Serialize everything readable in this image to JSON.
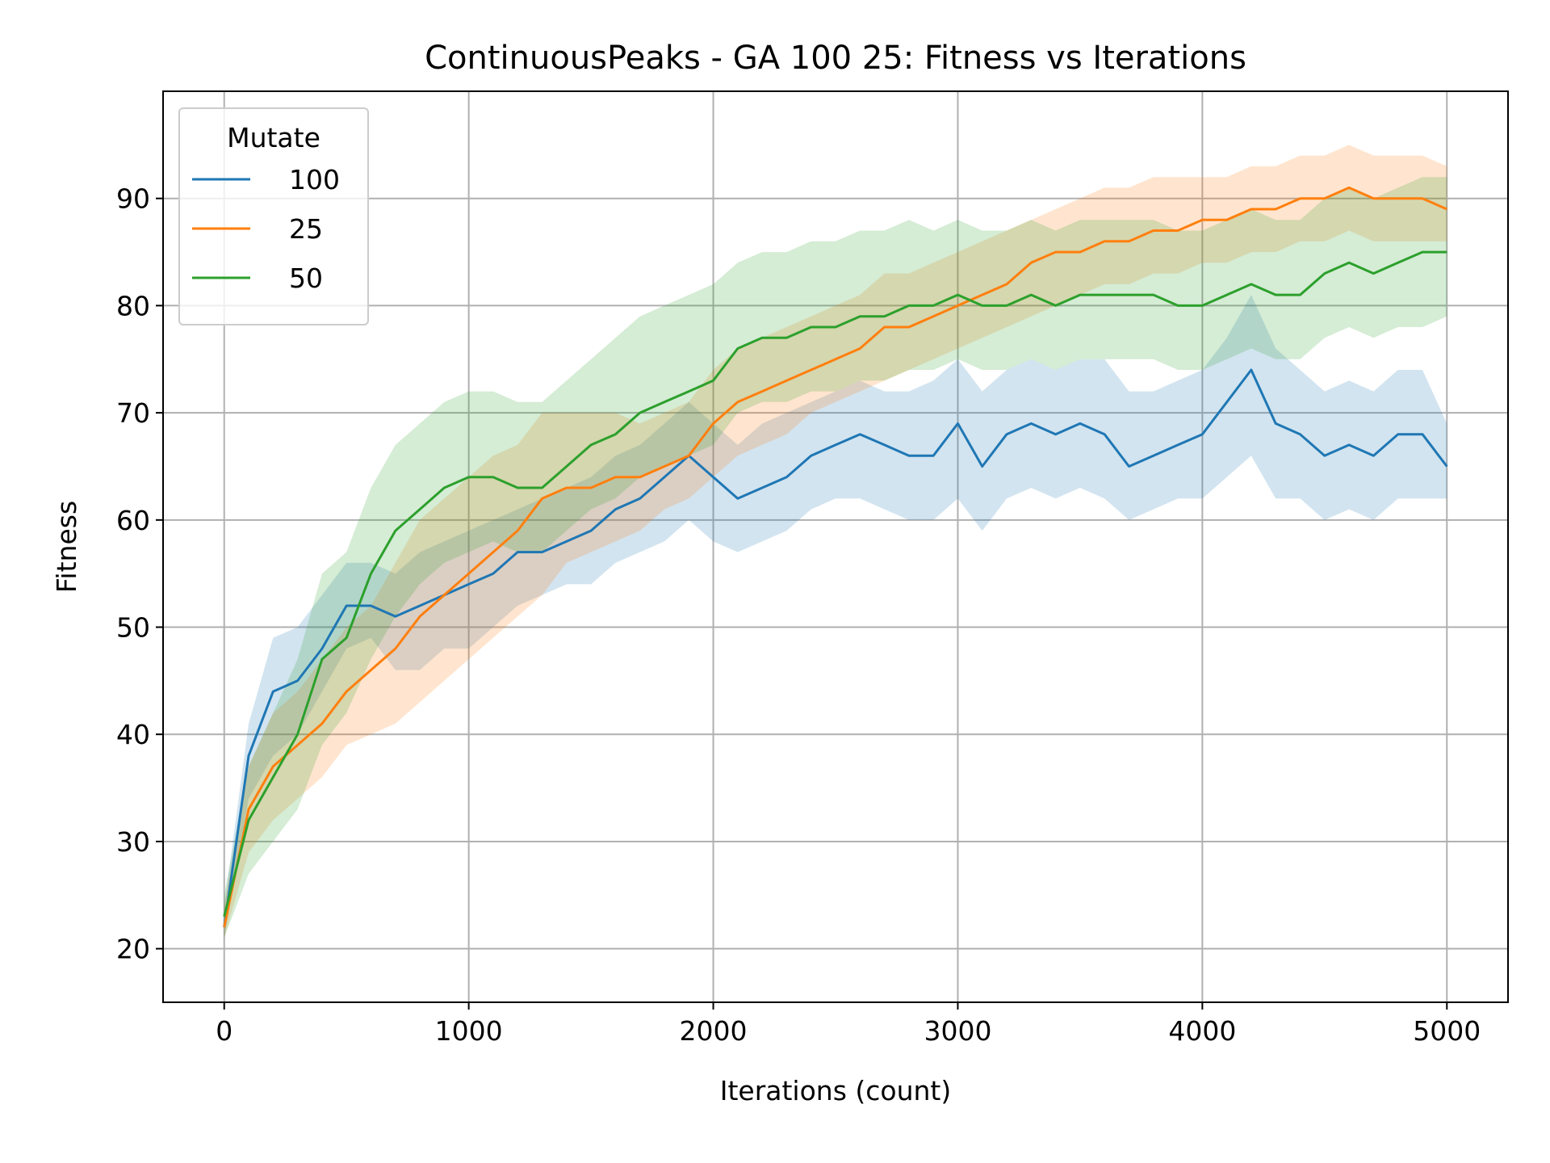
{
  "chart_data": {
    "type": "line",
    "title": "ContinuousPeaks - GA 100 25: Fitness vs Iterations",
    "xlabel": "Iterations (count)",
    "ylabel": "Fitness",
    "xlim": [
      -250,
      5250
    ],
    "ylim": [
      15,
      100
    ],
    "xticks": [
      "0",
      "1000",
      "2000",
      "3000",
      "4000",
      "5000"
    ],
    "yticks": [
      "20",
      "30",
      "40",
      "50",
      "60",
      "70",
      "80",
      "90"
    ],
    "grid": true,
    "legend": {
      "title": "Mutate",
      "position": "top-left"
    },
    "x": [
      0,
      100,
      200,
      300,
      400,
      500,
      600,
      700,
      800,
      900,
      1000,
      1100,
      1200,
      1300,
      1400,
      1500,
      1600,
      1700,
      1800,
      1900,
      2000,
      2100,
      2200,
      2300,
      2400,
      2500,
      2600,
      2700,
      2800,
      2900,
      3000,
      3100,
      3200,
      3300,
      3400,
      3500,
      3600,
      3700,
      3800,
      3900,
      4000,
      4100,
      4200,
      4300,
      4400,
      4500,
      4600,
      4700,
      4800,
      4900,
      5000
    ],
    "series": [
      {
        "name": "100",
        "color": "#1f77b4",
        "values": [
          22,
          38,
          44,
          45,
          48,
          52,
          52,
          51,
          52,
          53,
          54,
          55,
          57,
          57,
          58,
          59,
          61,
          62,
          64,
          66,
          64,
          62,
          63,
          64,
          66,
          67,
          68,
          67,
          66,
          66,
          69,
          65,
          68,
          69,
          68,
          69,
          68,
          65,
          66,
          67,
          68,
          71,
          74,
          69,
          68,
          66,
          67,
          66,
          68,
          68,
          65
        ],
        "lower": [
          21,
          34,
          38,
          40,
          44,
          48,
          49,
          46,
          46,
          48,
          48,
          50,
          52,
          53,
          54,
          54,
          56,
          57,
          58,
          60,
          58,
          57,
          58,
          59,
          61,
          62,
          62,
          61,
          60,
          60,
          62,
          59,
          62,
          63,
          62,
          63,
          62,
          60,
          61,
          62,
          62,
          64,
          66,
          62,
          62,
          60,
          61,
          60,
          62,
          62,
          62
        ],
        "upper": [
          24,
          41,
          49,
          50,
          53,
          56,
          56,
          55,
          57,
          58,
          59,
          60,
          61,
          62,
          63,
          64,
          66,
          67,
          69,
          71,
          69,
          67,
          69,
          70,
          71,
          72,
          73,
          72,
          72,
          73,
          75,
          72,
          74,
          75,
          74,
          75,
          75,
          72,
          72,
          73,
          74,
          77,
          81,
          76,
          74,
          72,
          73,
          72,
          74,
          74,
          69
        ]
      },
      {
        "name": "25",
        "color": "#ff7f0e",
        "values": [
          22,
          33,
          37,
          39,
          41,
          44,
          46,
          48,
          51,
          53,
          55,
          57,
          59,
          62,
          63,
          63,
          64,
          64,
          65,
          66,
          69,
          71,
          72,
          73,
          74,
          75,
          76,
          78,
          78,
          79,
          80,
          81,
          82,
          84,
          85,
          85,
          86,
          86,
          87,
          87,
          88,
          88,
          89,
          89,
          90,
          90,
          91,
          90,
          90,
          90,
          89
        ],
        "lower": [
          21,
          29,
          32,
          34,
          36,
          39,
          40,
          41,
          43,
          45,
          47,
          49,
          51,
          53,
          56,
          57,
          58,
          59,
          61,
          62,
          64,
          66,
          67,
          68,
          70,
          71,
          72,
          73,
          74,
          75,
          76,
          77,
          78,
          79,
          80,
          81,
          82,
          82,
          83,
          83,
          84,
          84,
          85,
          85,
          86,
          86,
          87,
          86,
          86,
          86,
          86
        ],
        "upper": [
          24,
          37,
          42,
          44,
          47,
          50,
          52,
          56,
          60,
          62,
          64,
          66,
          67,
          70,
          70,
          70,
          70,
          69,
          70,
          71,
          74,
          76,
          77,
          78,
          79,
          80,
          81,
          83,
          83,
          84,
          85,
          86,
          87,
          88,
          89,
          90,
          91,
          91,
          92,
          92,
          92,
          92,
          93,
          93,
          94,
          94,
          95,
          94,
          94,
          94,
          93
        ]
      },
      {
        "name": "50",
        "color": "#2ca02c",
        "values": [
          23,
          32,
          36,
          40,
          47,
          49,
          55,
          59,
          61,
          63,
          64,
          64,
          63,
          63,
          65,
          67,
          68,
          70,
          71,
          72,
          73,
          76,
          77,
          77,
          78,
          78,
          79,
          79,
          80,
          80,
          81,
          80,
          80,
          81,
          80,
          81,
          81,
          81,
          81,
          80,
          80,
          81,
          82,
          81,
          81,
          83,
          84,
          83,
          84,
          85,
          85
        ],
        "lower": [
          21,
          27,
          30,
          33,
          39,
          42,
          47,
          51,
          54,
          56,
          57,
          58,
          57,
          57,
          59,
          61,
          62,
          64,
          65,
          66,
          67,
          70,
          71,
          71,
          72,
          72,
          73,
          73,
          74,
          74,
          75,
          74,
          74,
          75,
          74,
          75,
          75,
          75,
          75,
          74,
          74,
          75,
          76,
          75,
          75,
          77,
          78,
          77,
          78,
          78,
          79
        ],
        "upper": [
          25,
          37,
          42,
          47,
          55,
          57,
          63,
          67,
          69,
          71,
          72,
          72,
          71,
          71,
          73,
          75,
          77,
          79,
          80,
          81,
          82,
          84,
          85,
          85,
          86,
          86,
          87,
          87,
          88,
          87,
          88,
          87,
          87,
          88,
          87,
          88,
          88,
          88,
          88,
          87,
          87,
          88,
          89,
          88,
          88,
          90,
          91,
          90,
          91,
          92,
          92
        ]
      }
    ]
  }
}
